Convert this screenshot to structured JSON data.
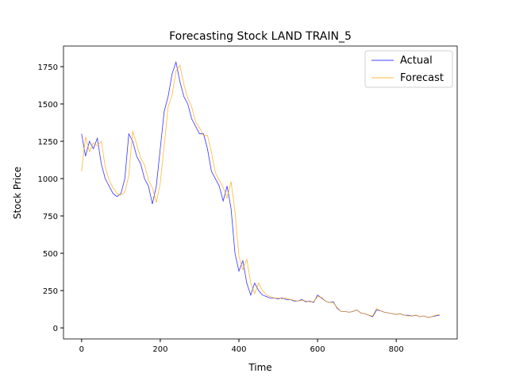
{
  "chart_data": {
    "type": "line",
    "title": "Forecasting Stock LAND TRAIN_5",
    "x_label": "Time",
    "y_label": "Stock Price",
    "xlim": [
      -46,
      955
    ],
    "ylim": [
      -74,
      1888
    ],
    "xticks": [
      0,
      200,
      400,
      600,
      800
    ],
    "yticks": [
      0,
      250,
      500,
      750,
      1000,
      1250,
      1500,
      1750
    ],
    "legend": "upper right",
    "x": [
      0,
      10,
      20,
      30,
      40,
      50,
      60,
      70,
      80,
      90,
      100,
      110,
      120,
      130,
      140,
      150,
      160,
      170,
      180,
      190,
      200,
      210,
      220,
      230,
      240,
      250,
      260,
      270,
      280,
      290,
      300,
      310,
      320,
      330,
      340,
      350,
      360,
      370,
      380,
      390,
      400,
      410,
      420,
      430,
      440,
      450,
      460,
      470,
      480,
      490,
      500,
      510,
      520,
      530,
      540,
      550,
      560,
      570,
      580,
      590,
      600,
      610,
      620,
      630,
      640,
      650,
      660,
      670,
      680,
      690,
      700,
      710,
      720,
      730,
      740,
      750,
      760,
      770,
      780,
      790,
      800,
      810,
      820,
      830,
      840,
      850,
      860,
      870,
      880,
      890,
      900,
      910
    ],
    "series": [
      {
        "name": "Actual",
        "color": "#0000ff",
        "values": [
          1300,
          1150,
          1250,
          1200,
          1270,
          1100,
          1000,
          950,
          900,
          880,
          900,
          1000,
          1300,
          1250,
          1150,
          1100,
          1000,
          950,
          830,
          950,
          1200,
          1450,
          1550,
          1700,
          1780,
          1650,
          1550,
          1500,
          1400,
          1350,
          1300,
          1300,
          1200,
          1050,
          1000,
          950,
          850,
          950,
          800,
          500,
          380,
          450,
          300,
          220,
          300,
          250,
          220,
          210,
          200,
          200,
          195,
          200,
          190,
          190,
          180,
          180,
          190,
          175,
          180,
          170,
          220,
          200,
          180,
          170,
          175,
          130,
          110,
          110,
          105,
          110,
          120,
          100,
          95,
          85,
          75,
          120,
          115,
          105,
          100,
          95,
          90,
          95,
          85,
          85,
          80,
          85,
          75,
          80,
          70,
          75,
          80,
          85
        ]
      },
      {
        "name": "Forecast",
        "color": "#ffa500",
        "values": [
          1050,
          1280,
          1180,
          1240,
          1220,
          1250,
          1080,
          990,
          940,
          900,
          890,
          910,
          1020,
          1320,
          1230,
          1140,
          1090,
          990,
          940,
          840,
          970,
          1220,
          1480,
          1560,
          1720,
          1760,
          1630,
          1540,
          1480,
          1380,
          1340,
          1290,
          1290,
          1180,
          1040,
          990,
          940,
          870,
          980,
          780,
          480,
          390,
          460,
          300,
          230,
          300,
          250,
          220,
          210,
          200,
          200,
          195,
          200,
          190,
          185,
          180,
          185,
          180,
          175,
          175,
          210,
          205,
          180,
          170,
          170,
          135,
          110,
          110,
          105,
          110,
          120,
          100,
          95,
          85,
          80,
          130,
          115,
          105,
          100,
          95,
          90,
          95,
          85,
          80,
          80,
          85,
          75,
          80,
          70,
          75,
          85,
          90
        ]
      }
    ]
  }
}
